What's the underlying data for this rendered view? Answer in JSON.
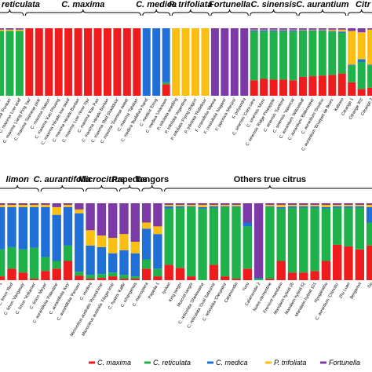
{
  "colors": {
    "C. maxima": "#ee1c1c",
    "C. reticulata": "#1fb14a",
    "C. medica": "#1f6fd6",
    "P. trifoliata": "#fbbf14",
    "Fortunella": "#7b3aa6"
  },
  "chart_data": [
    {
      "type": "bar",
      "stacked": true,
      "panel": "top",
      "components": [
        "C. maxima",
        "C. reticulata",
        "C. medica",
        "P. trifoliata",
        "Fortunella"
      ],
      "groups": [
        {
          "label": "reticulata",
          "italic": true,
          "start": 0,
          "end": 3
        },
        {
          "label": "C. maxima",
          "italic": true,
          "start": 3,
          "end": 15
        },
        {
          "label": "C. medica",
          "italic": true,
          "start": 15,
          "end": 18
        },
        {
          "label": "P. trifoliata",
          "italic": true,
          "start": 18,
          "end": 22
        },
        {
          "label": "Fortunella",
          "italic": true,
          "start": 22,
          "end": 26
        },
        {
          "label": "C. sinensis",
          "italic": true,
          "start": 26,
          "end": 31
        },
        {
          "label": "C. aurantium",
          "italic": true,
          "start": 31,
          "end": 36
        },
        {
          "label": "Citr",
          "italic": true,
          "start": 36,
          "end": 39
        }
      ],
      "samples": [
        {
          "label": "\"Ponkan\"",
          "values": [
            0.0,
            0.96,
            0.0,
            0.02,
            0.02
          ]
        },
        {
          "label": "C. reticulata 'Ponkan'",
          "values": [
            0.0,
            0.96,
            0.0,
            0.02,
            0.02
          ]
        },
        {
          "label": "C. maxima 'Low acid'",
          "values": [
            0.0,
            0.96,
            0.0,
            0.02,
            0.02
          ]
        },
        {
          "label": "C. maxima 'Liang Ping Yau'",
          "values": [
            1.0,
            0.0,
            0.0,
            0.0,
            0.0
          ]
        },
        {
          "label": "C. maxima 'Siamese pink'",
          "values": [
            1.0,
            0.0,
            0.0,
            0.0,
            0.0
          ]
        },
        {
          "label": "C. maxima 'Nakon'",
          "values": [
            1.0,
            0.0,
            0.0,
            0.0,
            0.0
          ]
        },
        {
          "label": "C. maxima 'Kao Phuang'",
          "values": [
            1.0,
            0.0,
            0.0,
            0.0,
            0.0
          ]
        },
        {
          "label": "C. maxima 'Hirado low seed'",
          "values": [
            1.0,
            0.0,
            0.0,
            0.0,
            0.0
          ]
        },
        {
          "label": "C. maxima 'Hirado Buntan'",
          "values": [
            1.0,
            0.0,
            0.0,
            0.0,
            0.0
          ]
        },
        {
          "label": "C. maxima 'Low Yeow Yau'",
          "values": [
            1.0,
            0.0,
            0.0,
            0.0,
            0.0
          ]
        },
        {
          "label": "C. maxima 'Kao Pan'",
          "values": [
            1.0,
            0.0,
            0.0,
            0.0,
            0.0
          ]
        },
        {
          "label": "C. maxima 'Hirado Buntan'",
          "values": [
            1.0,
            0.0,
            0.0,
            0.0,
            0.0
          ]
        },
        {
          "label": "C. maxima 'Red Shaddock'",
          "values": [
            1.0,
            0.0,
            0.0,
            0.0,
            0.0
          ]
        },
        {
          "label": "C. maxima 'Siamese sweet'",
          "values": [
            1.0,
            0.0,
            0.0,
            0.0,
            0.0
          ]
        },
        {
          "label": "C. maxima 'Tahitian'",
          "values": [
            1.0,
            0.0,
            0.0,
            0.0,
            0.0
          ]
        },
        {
          "label": "C. medica 'Buddha's hand'",
          "values": [
            0.0,
            0.0,
            1.0,
            0.0,
            0.0
          ]
        },
        {
          "label": "C. medica 'Etrog'",
          "values": [
            0.0,
            0.0,
            1.0,
            0.0,
            0.0
          ]
        },
        {
          "label": "C. medica 'Unknown'",
          "values": [
            0.17,
            0.03,
            0.8,
            0.0,
            0.0
          ]
        },
        {
          "label": "P. trifoliata seedling",
          "values": [
            0.0,
            0.0,
            0.0,
            1.0,
            0.0
          ]
        },
        {
          "label": "P. trifoliata 'Argentina'",
          "values": [
            0.0,
            0.0,
            0.0,
            1.0,
            0.0
          ]
        },
        {
          "label": "P. trifoliata 'Flying dragon'",
          "values": [
            0.0,
            0.0,
            0.0,
            1.0,
            0.0
          ]
        },
        {
          "label": "P. trifoliata 'Rubidoux'",
          "values": [
            0.0,
            0.0,
            0.0,
            1.0,
            0.0
          ]
        },
        {
          "label": "F. crassifolia 'Meiwa'",
          "values": [
            0.0,
            0.0,
            0.0,
            0.0,
            1.0
          ]
        },
        {
          "label": "F. crassifolia 'Nagami'",
          "values": [
            0.0,
            0.0,
            0.0,
            0.0,
            1.0
          ]
        },
        {
          "label": "F. japonica 'Marumi'",
          "values": [
            0.0,
            0.0,
            0.0,
            0.0,
            1.0
          ]
        },
        {
          "label": "F. polyandra",
          "values": [
            0.0,
            0.0,
            0.0,
            0.0,
            1.0
          ]
        },
        {
          "label": "C. sinensis 'Cara cara'",
          "values": [
            0.23,
            0.72,
            0.02,
            0.01,
            0.02
          ]
        },
        {
          "label": "C. sinensis 'Moro'",
          "values": [
            0.25,
            0.7,
            0.02,
            0.01,
            0.02
          ]
        },
        {
          "label": "C. sinensis 'Ridge Pineapple'",
          "values": [
            0.24,
            0.71,
            0.02,
            0.01,
            0.02
          ]
        },
        {
          "label": "C. sinensis 'Sanford'",
          "values": [
            0.24,
            0.71,
            0.02,
            0.01,
            0.02
          ]
        },
        {
          "label": "C. sinensis 'Valencia'",
          "values": [
            0.23,
            0.72,
            0.02,
            0.01,
            0.02
          ]
        },
        {
          "label": "C. aurantium 'Willowleaf'",
          "values": [
            0.28,
            0.68,
            0.01,
            0.01,
            0.02
          ]
        },
        {
          "label": "C. aurantium 'Bittersweet'",
          "values": [
            0.29,
            0.67,
            0.01,
            0.01,
            0.02
          ]
        },
        {
          "label": "C. aurantium 'Goutou'",
          "values": [
            0.3,
            0.66,
            0.01,
            0.01,
            0.02
          ]
        },
        {
          "label": "C. aurantium 'Bouquet de fleurs'",
          "values": [
            0.31,
            0.64,
            0.01,
            0.02,
            0.02
          ]
        },
        {
          "label": "Kabusu",
          "values": [
            0.33,
            0.6,
            0.02,
            0.03,
            0.02
          ]
        },
        {
          "label": "Citrange 1",
          "values": [
            0.2,
            0.25,
            0.01,
            0.5,
            0.04
          ]
        },
        {
          "label": "Citrange 'R3'",
          "values": [
            0.1,
            0.4,
            0.04,
            0.4,
            0.06
          ]
        },
        {
          "label": "Citrange 2",
          "values": [
            0.12,
            0.33,
            0.01,
            0.52,
            0.02
          ]
        }
      ]
    },
    {
      "type": "bar",
      "stacked": true,
      "panel": "bottom",
      "components": [
        "C. maxima",
        "C. reticulata",
        "C. medica",
        "P. trifoliata",
        "Fortunella"
      ],
      "groups": [
        {
          "label": "limon",
          "italic": true,
          "start": 0,
          "end": 4
        },
        {
          "label": "C. aurantifolia",
          "italic": true,
          "start": 4,
          "end": 8
        },
        {
          "label": "Microcitrus",
          "italic": true,
          "start": 8,
          "end": 11
        },
        {
          "label": "Papedas",
          "italic": false,
          "start": 11,
          "end": 13
        },
        {
          "label": "Tangors",
          "italic": false,
          "start": 13,
          "end": 15
        },
        {
          "label": "Others true citrus",
          "italic": false,
          "start": 15,
          "end": 34
        }
      ],
      "samples": [
        {
          "label": "C. limon 1",
          "values": [
            0.05,
            0.35,
            0.55,
            0.03,
            0.02
          ]
        },
        {
          "label": "C. limon 'Red'",
          "values": [
            0.15,
            0.28,
            0.52,
            0.03,
            0.02
          ]
        },
        {
          "label": "C. limon 'Vangasay'",
          "values": [
            0.1,
            0.3,
            0.55,
            0.03,
            0.02
          ]
        },
        {
          "label": "C. limon 'Volkamer'",
          "values": [
            0.02,
            0.4,
            0.53,
            0.03,
            0.02
          ]
        },
        {
          "label": "C. limon 'Meyer'",
          "values": [
            0.12,
            0.18,
            0.65,
            0.03,
            0.02
          ]
        },
        {
          "label": "C. aurantifolia 'Palestine'",
          "values": [
            0.15,
            0.1,
            0.6,
            0.1,
            0.05
          ]
        },
        {
          "label": "C. aurantifolia 'Key'",
          "values": [
            0.25,
            0.2,
            0.5,
            0.03,
            0.02
          ]
        },
        {
          "label": "C. aurantifolia 'Persian'",
          "values": [
            0.06,
            0.05,
            0.76,
            0.05,
            0.08
          ]
        },
        {
          "label": "C. inodora",
          "values": [
            0.02,
            0.05,
            0.38,
            0.2,
            0.35
          ]
        },
        {
          "label": "Microcitrus australis 'Round lime'",
          "values": [
            0.03,
            0.05,
            0.35,
            0.15,
            0.42
          ]
        },
        {
          "label": "Microcitrus australis 'Finger lime'",
          "values": [
            0.05,
            0.05,
            0.25,
            0.2,
            0.45
          ]
        },
        {
          "label": "C. hystrix 'Kaffir'",
          "values": [
            0.02,
            0.05,
            0.32,
            0.21,
            0.4
          ]
        },
        {
          "label": "C. ichangensis",
          "values": [
            0.02,
            0.03,
            0.3,
            0.15,
            0.5
          ]
        },
        {
          "label": "C. macroptera",
          "values": [
            0.15,
            0.12,
            0.4,
            0.08,
            0.25
          ]
        },
        {
          "label": "Papeda 1",
          "values": [
            0.05,
            0.1,
            0.45,
            0.1,
            0.3
          ]
        },
        {
          "label": "Iyokan",
          "values": [
            0.2,
            0.73,
            0.03,
            0.02,
            0.02
          ]
        },
        {
          "label": "King tangor",
          "values": [
            0.16,
            0.78,
            0.02,
            0.02,
            0.02
          ]
        },
        {
          "label": "Murcott tangor",
          "values": [
            0.05,
            0.9,
            0.01,
            0.02,
            0.02
          ]
        },
        {
          "label": "C. reticulata 'Shekwasha'",
          "values": [
            0.0,
            0.93,
            0.02,
            0.03,
            0.02
          ]
        },
        {
          "label": "C. reticulata 'Oval Satsuma'",
          "values": [
            0.2,
            0.74,
            0.02,
            0.02,
            0.02
          ]
        },
        {
          "label": "C. reticulata 'Cleopatra'",
          "values": [
            0.05,
            0.9,
            0.01,
            0.02,
            0.02
          ]
        },
        {
          "label": "Calamondin",
          "values": [
            0.02,
            0.93,
            0.01,
            0.02,
            0.02
          ]
        },
        {
          "label": "Yuzu",
          "values": [
            0.15,
            0.55,
            0.05,
            0.0,
            0.25
          ]
        },
        {
          "label": "Calamondin 2",
          "values": [
            0.0,
            0.02,
            0.01,
            0.0,
            0.97
          ]
        },
        {
          "label": "Nules clementine",
          "values": [
            0.02,
            0.93,
            0.01,
            0.02,
            0.02
          ]
        },
        {
          "label": "Fremont mandarin",
          "values": [
            0.25,
            0.68,
            0.02,
            0.03,
            0.02
          ]
        },
        {
          "label": "Mandarin hybrid 05",
          "values": [
            0.1,
            0.84,
            0.02,
            0.02,
            0.02
          ]
        },
        {
          "label": "Mandarin hybrid 62",
          "values": [
            0.1,
            0.84,
            0.02,
            0.02,
            0.02
          ]
        },
        {
          "label": "Mandarin hybrid 101",
          "values": [
            0.12,
            0.82,
            0.02,
            0.02,
            0.02
          ]
        },
        {
          "label": "Hyuganatsu",
          "values": [
            0.25,
            0.68,
            0.02,
            0.03,
            0.02
          ]
        },
        {
          "label": "C. aurantium 'Chinotto'",
          "values": [
            0.46,
            0.48,
            0.02,
            0.02,
            0.02
          ]
        },
        {
          "label": "Zhu Luan",
          "values": [
            0.44,
            0.5,
            0.02,
            0.02,
            0.02
          ]
        },
        {
          "label": "Bergamot",
          "values": [
            0.4,
            0.54,
            0.02,
            0.02,
            0.02
          ]
        },
        {
          "label": "Go",
          "values": [
            0.45,
            0.3,
            0.2,
            0.03,
            0.02
          ]
        }
      ]
    }
  ],
  "legend": {
    "items": [
      {
        "label": "C. maxima",
        "key": "C. maxima"
      },
      {
        "label": "C. reticulata",
        "key": "C. reticulata"
      },
      {
        "label": "C. medica",
        "key": "C. medica"
      },
      {
        "label": "P. trifoliata",
        "key": "P. trifoliata"
      },
      {
        "label": "Fortunella",
        "key": "Fortunella"
      }
    ]
  }
}
